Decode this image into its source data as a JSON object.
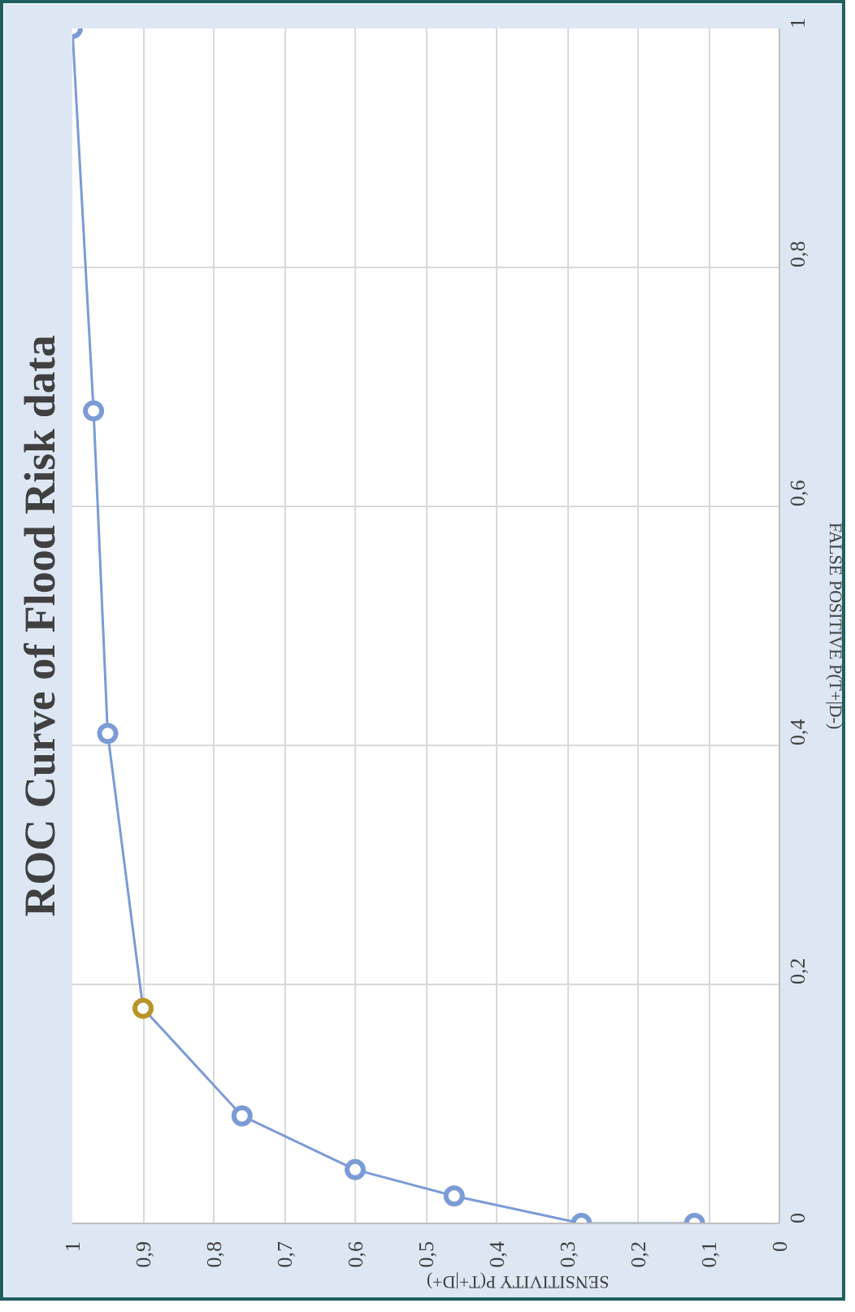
{
  "chart_data": {
    "type": "line",
    "title": "ROC Curve of Flood Risk data",
    "xlabel": "SENSITIVITY P(T+|D+)",
    "ylabel": "FALSE POSITIVE P(T+|D-)",
    "x": [
      0.12,
      0.28,
      0.46,
      0.6,
      0.76,
      0.9,
      0.95,
      0.97,
      1
    ],
    "series": [
      {
        "color": "#7b9bd6",
        "values": [
          0,
          0,
          0.023,
          0.045,
          0.09,
          0.18,
          0.41,
          0.68,
          1
        ],
        "colors": [
          "#7b9bd6",
          "#7b9bd6",
          "#7b9bd6",
          "#7b9bd6",
          "#7b9bd6",
          "#b8942a",
          "#7b9bd6",
          "#7b9bd6",
          "#7b9bd6"
        ]
      }
    ],
    "xlim": [
      1,
      0
    ],
    "ylim": [
      0,
      1
    ],
    "xticks": [
      1,
      {
        "value": 0.9,
        "label": "0,9"
      },
      {
        "value": 0.8,
        "label": "0,8"
      },
      {
        "value": 0.7,
        "label": "0,7"
      },
      {
        "value": 0.6,
        "label": "0,6"
      },
      {
        "value": 0.5,
        "label": "0,5"
      },
      {
        "value": 0.4,
        "label": "0,4"
      },
      {
        "value": 0.3,
        "label": "0,3"
      },
      {
        "value": 0.2,
        "label": "0,2"
      },
      {
        "value": 0.1,
        "label": "0,1"
      },
      0
    ],
    "yticks": [
      0,
      {
        "value": 0.2,
        "label": "0,2"
      },
      {
        "value": 0.4,
        "label": "0,4"
      },
      {
        "value": 0.6,
        "label": "0,6"
      },
      {
        "value": 0.8,
        "label": "0,8"
      },
      1
    ],
    "grid": true,
    "marker": "circle",
    "line_style": "solid"
  }
}
